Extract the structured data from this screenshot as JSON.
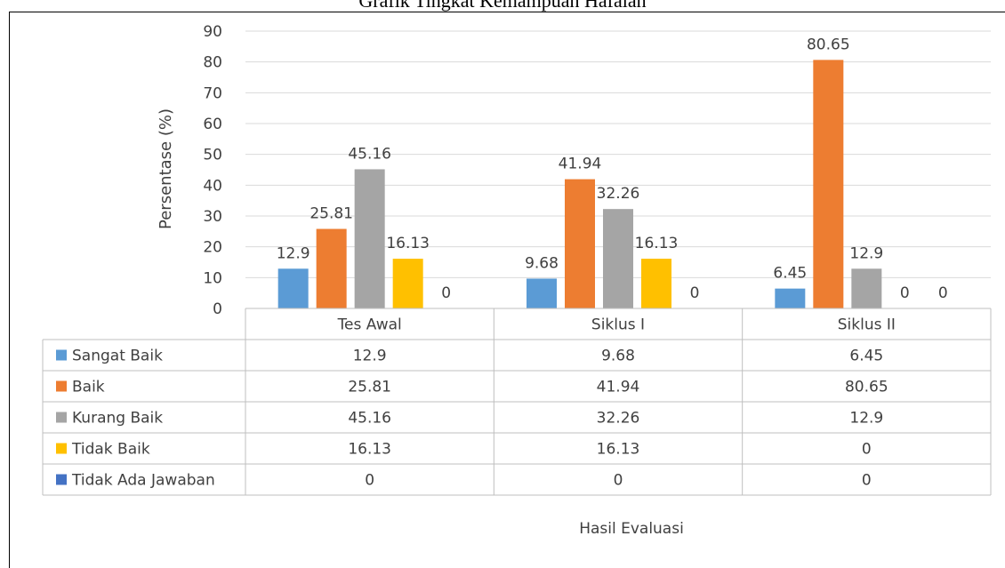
{
  "chart_data": {
    "type": "bar",
    "title": "Grafik Tingkat Kemampuan Hafalan",
    "xlabel": "Hasil Evaluasi",
    "ylabel": "Persentase (%)",
    "ylim": [
      0,
      90
    ],
    "yticks": [
      0,
      10,
      20,
      30,
      40,
      50,
      60,
      70,
      80,
      90
    ],
    "grid": true,
    "legend": "data-table",
    "categories": [
      "Tes Awal",
      "Siklus I",
      "Siklus II"
    ],
    "series": [
      {
        "name": "Sangat Baik",
        "color": "#5b9bd5",
        "values": [
          12.9,
          9.68,
          6.45
        ],
        "labels": [
          "12.9",
          "9.68",
          "6.45"
        ]
      },
      {
        "name": "Baik",
        "color": "#ed7d31",
        "values": [
          25.81,
          41.94,
          80.65
        ],
        "labels": [
          "25.81",
          "41.94",
          "80.65"
        ]
      },
      {
        "name": "Kurang Baik",
        "color": "#a5a5a5",
        "values": [
          45.16,
          32.26,
          12.9
        ],
        "labels": [
          "45.16",
          "32.26",
          "12.9"
        ]
      },
      {
        "name": "Tidak Baik",
        "color": "#ffc000",
        "values": [
          16.13,
          16.13,
          0
        ],
        "labels": [
          "16.13",
          "16.13",
          "0"
        ]
      },
      {
        "name": "Tidak Ada Jawaban",
        "color": "#4472c4",
        "values": [
          0,
          0,
          0
        ],
        "labels": [
          "0",
          "0",
          "0"
        ]
      }
    ]
  }
}
